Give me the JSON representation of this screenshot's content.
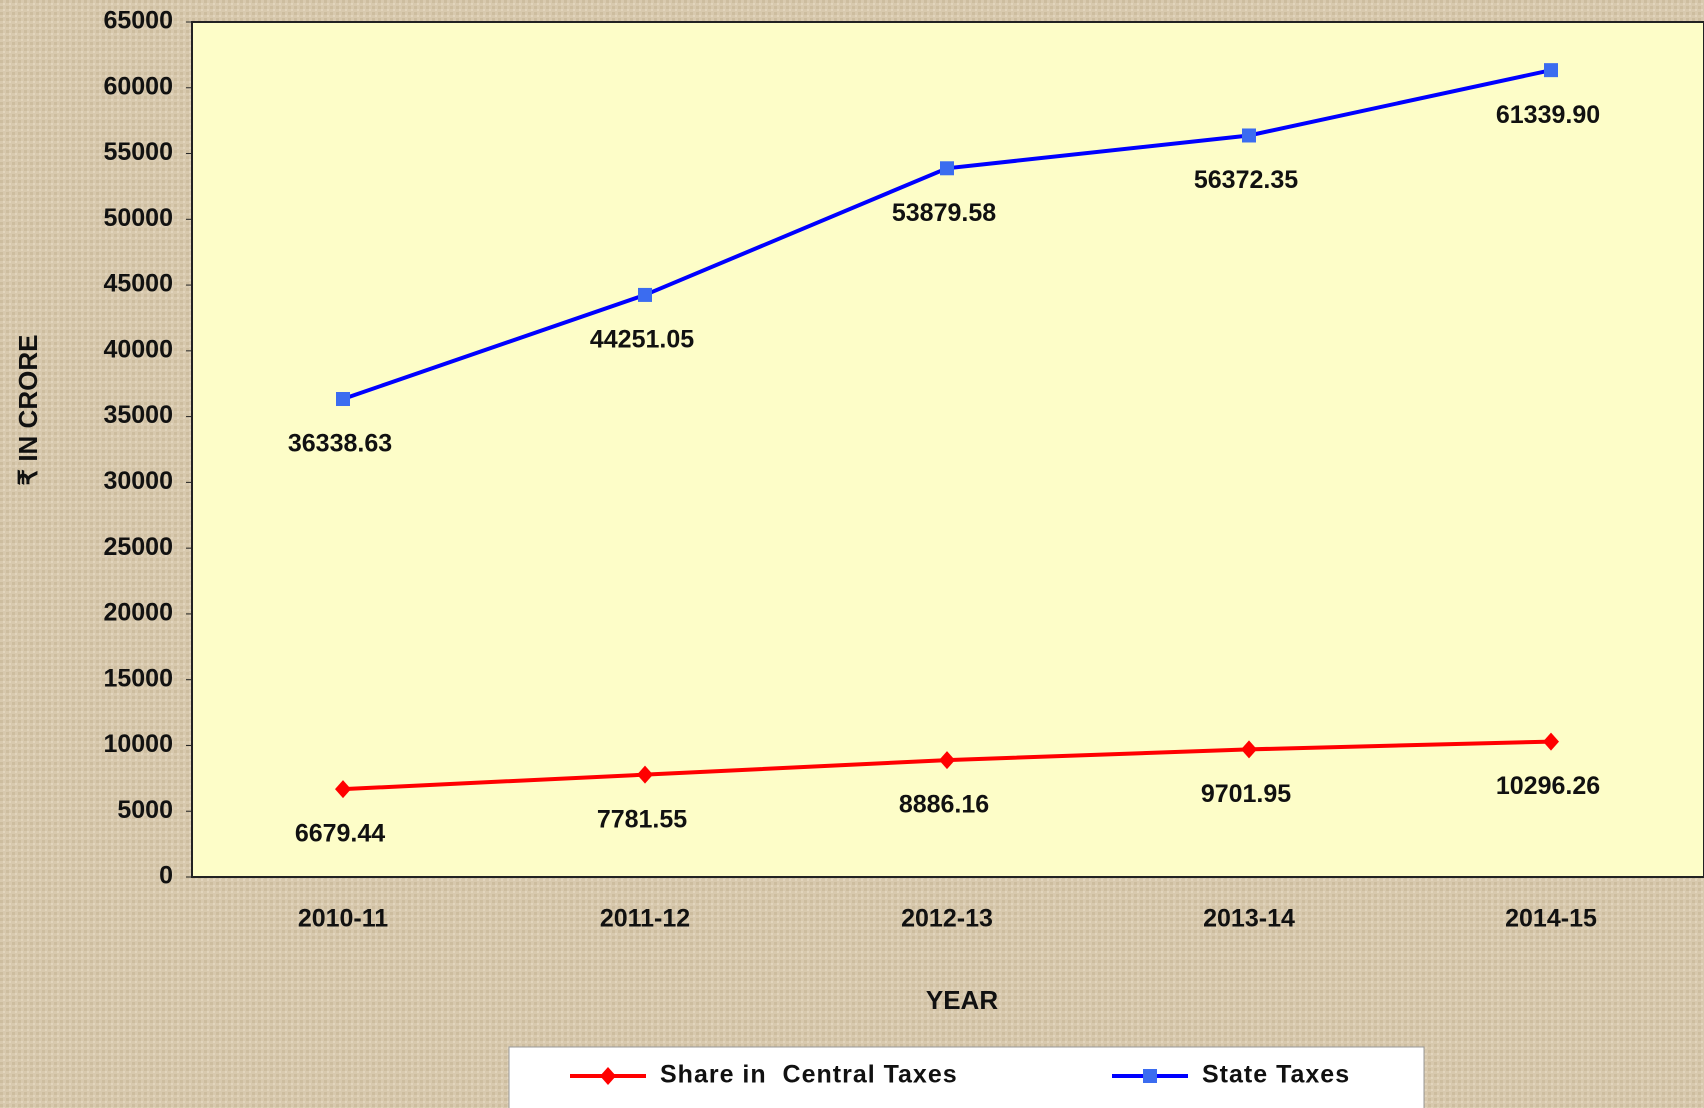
{
  "chart_data": {
    "type": "line",
    "y_label": "₹ IN CRORE",
    "x_label": "YEAR",
    "categories": [
      "2010-11",
      "2011-12",
      "2012-13",
      "2013-14",
      "2014-15"
    ],
    "series": [
      {
        "name": "Share in  Central Taxes",
        "color": "#ff0000",
        "marker": "diamond",
        "values": [
          6679.44,
          7781.55,
          8886.16,
          9701.95,
          10296.26
        ],
        "value_labels": [
          "6679.44",
          "7781.55",
          "8886.16",
          "9701.95",
          "10296.26"
        ]
      },
      {
        "name": "State Taxes",
        "color": "#0000ff",
        "marker": "square",
        "values": [
          36338.63,
          44251.05,
          53879.58,
          56372.35,
          61339.9
        ],
        "value_labels": [
          "36338.63",
          "44251.05",
          "53879.58",
          "56372.35",
          "61339.90"
        ]
      }
    ],
    "ylim": [
      0,
      65000
    ],
    "yticks": [
      0,
      5000,
      10000,
      15000,
      20000,
      25000,
      30000,
      35000,
      40000,
      45000,
      50000,
      55000,
      60000,
      65000
    ],
    "grid": false,
    "legend": "bottom"
  }
}
